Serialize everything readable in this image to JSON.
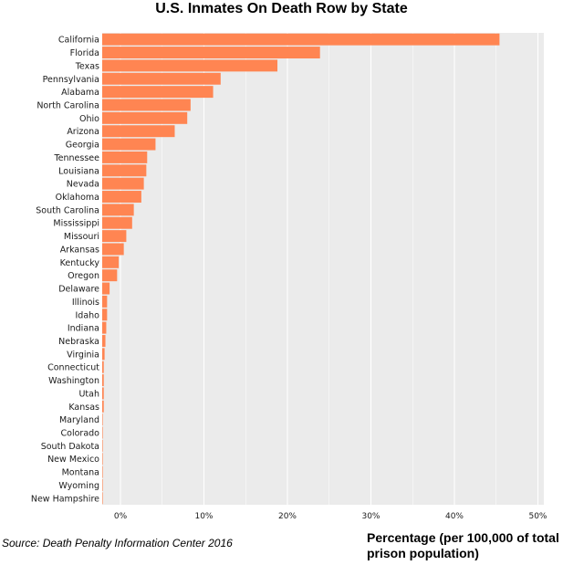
{
  "chart_data": {
    "type": "bar",
    "orientation": "horizontal",
    "title": "U.S. Inmates On Death Row by State",
    "xlabel": "Percentage (per 100,000 of total prison population)",
    "ylabel": "",
    "source": "Source: Death Penalty Information Center 2016",
    "xlim": [
      -2.5,
      50
    ],
    "xticks": [
      0,
      10,
      20,
      30,
      40,
      50
    ],
    "xtick_labels": [
      "0%",
      "10%",
      "20%",
      "30%",
      "40%",
      "50%"
    ],
    "grid": true,
    "bar_color": "#ff8552",
    "background_color": "#ebebeb",
    "categories": [
      "California",
      "Florida",
      "Texas",
      "Pennsylvania",
      "Alabama",
      "North Carolina",
      "Ohio",
      "Arizona",
      "Georgia",
      "Tennessee",
      "Louisiana",
      "Nevada",
      "Oklahoma",
      "South Carolina",
      "Mississippi",
      "Missouri",
      "Arkansas",
      "Kentucky",
      "Oregon",
      "Delaware",
      "Illinois",
      "Idaho",
      "Indiana",
      "Nebraska",
      "Virginia",
      "Connecticut",
      "Washington",
      "Utah",
      "Kansas",
      "Maryland",
      "Colorado",
      "South Dakota",
      "New Mexico",
      "Montana",
      "Wyoming",
      "New Hampshire"
    ],
    "values": [
      45.4,
      23.9,
      18.8,
      12.0,
      11.1,
      8.4,
      8.0,
      6.5,
      4.2,
      3.2,
      3.1,
      2.8,
      2.5,
      1.6,
      1.4,
      0.7,
      0.4,
      -0.2,
      -0.4,
      -1.3,
      -1.6,
      -1.6,
      -1.7,
      -1.8,
      -1.9,
      -2.0,
      -2.0,
      -2.0,
      -2.0,
      -2.2,
      -2.3,
      -2.4,
      -2.45,
      -2.45,
      -2.5,
      -2.5
    ]
  }
}
